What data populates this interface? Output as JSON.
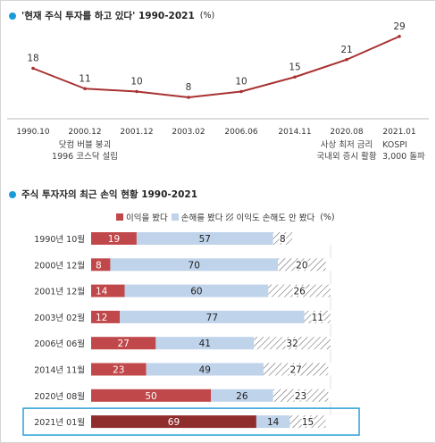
{
  "line_section": {
    "title": "'현재 주식 투자를 하고 있다' 1990-2021",
    "unit": "(%)"
  },
  "bar_section": {
    "title": "주식 투자자의 최근 손익 현황 1990-2021",
    "unit": "(%)"
  },
  "colors": {
    "accent_dot": "#1a9bd7",
    "line": "#a83232",
    "profit": "#c0484a",
    "profit_highlight": "#8f2d2d",
    "loss": "#bfd3ea",
    "highlight_box": "#2a9fd8"
  },
  "chart_data": [
    {
      "type": "line",
      "title": "'현재 주식 투자를 하고 있다' 1990-2021",
      "unit": "(%)",
      "x": [
        "1990.10",
        "2000.12",
        "2001.12",
        "2003.02",
        "2006.06",
        "2014.11",
        "2020.08",
        "2021.01"
      ],
      "values": [
        18,
        11,
        10,
        8,
        10,
        15,
        21,
        29
      ],
      "annotations": [
        {
          "x": "2000.12",
          "lines": [
            "닷컴 버블 붕괴",
            "1996 코스닥 설립"
          ]
        },
        {
          "x": "2020.08",
          "lines": [
            "사상 최저 금리",
            "국내외 증시 활황"
          ]
        },
        {
          "x": "2021.01",
          "lines": [
            "KOSPI",
            "3,000 돌파"
          ]
        }
      ]
    },
    {
      "type": "bar",
      "stacked": true,
      "orientation": "horizontal",
      "title": "주식 투자자의 최근 손익 현황 1990-2021",
      "unit": "(%)",
      "categories": [
        "1990년 10월",
        "2000년 12월",
        "2001년 12월",
        "2003년 02월",
        "2006년 06월",
        "2014년 11월",
        "2020년 08월",
        "2021년 01월"
      ],
      "series": [
        {
          "name": "이익을 봤다",
          "values": [
            19,
            8,
            14,
            12,
            27,
            23,
            50,
            69
          ]
        },
        {
          "name": "손해를 봤다",
          "values": [
            57,
            70,
            60,
            77,
            41,
            49,
            26,
            14
          ]
        },
        {
          "name": "이익도 손해도 안 봤다",
          "values": [
            8,
            20,
            26,
            11,
            32,
            27,
            23,
            15
          ]
        }
      ],
      "legend_unit": "(%)",
      "highlight_category": "2021년 01월"
    }
  ]
}
